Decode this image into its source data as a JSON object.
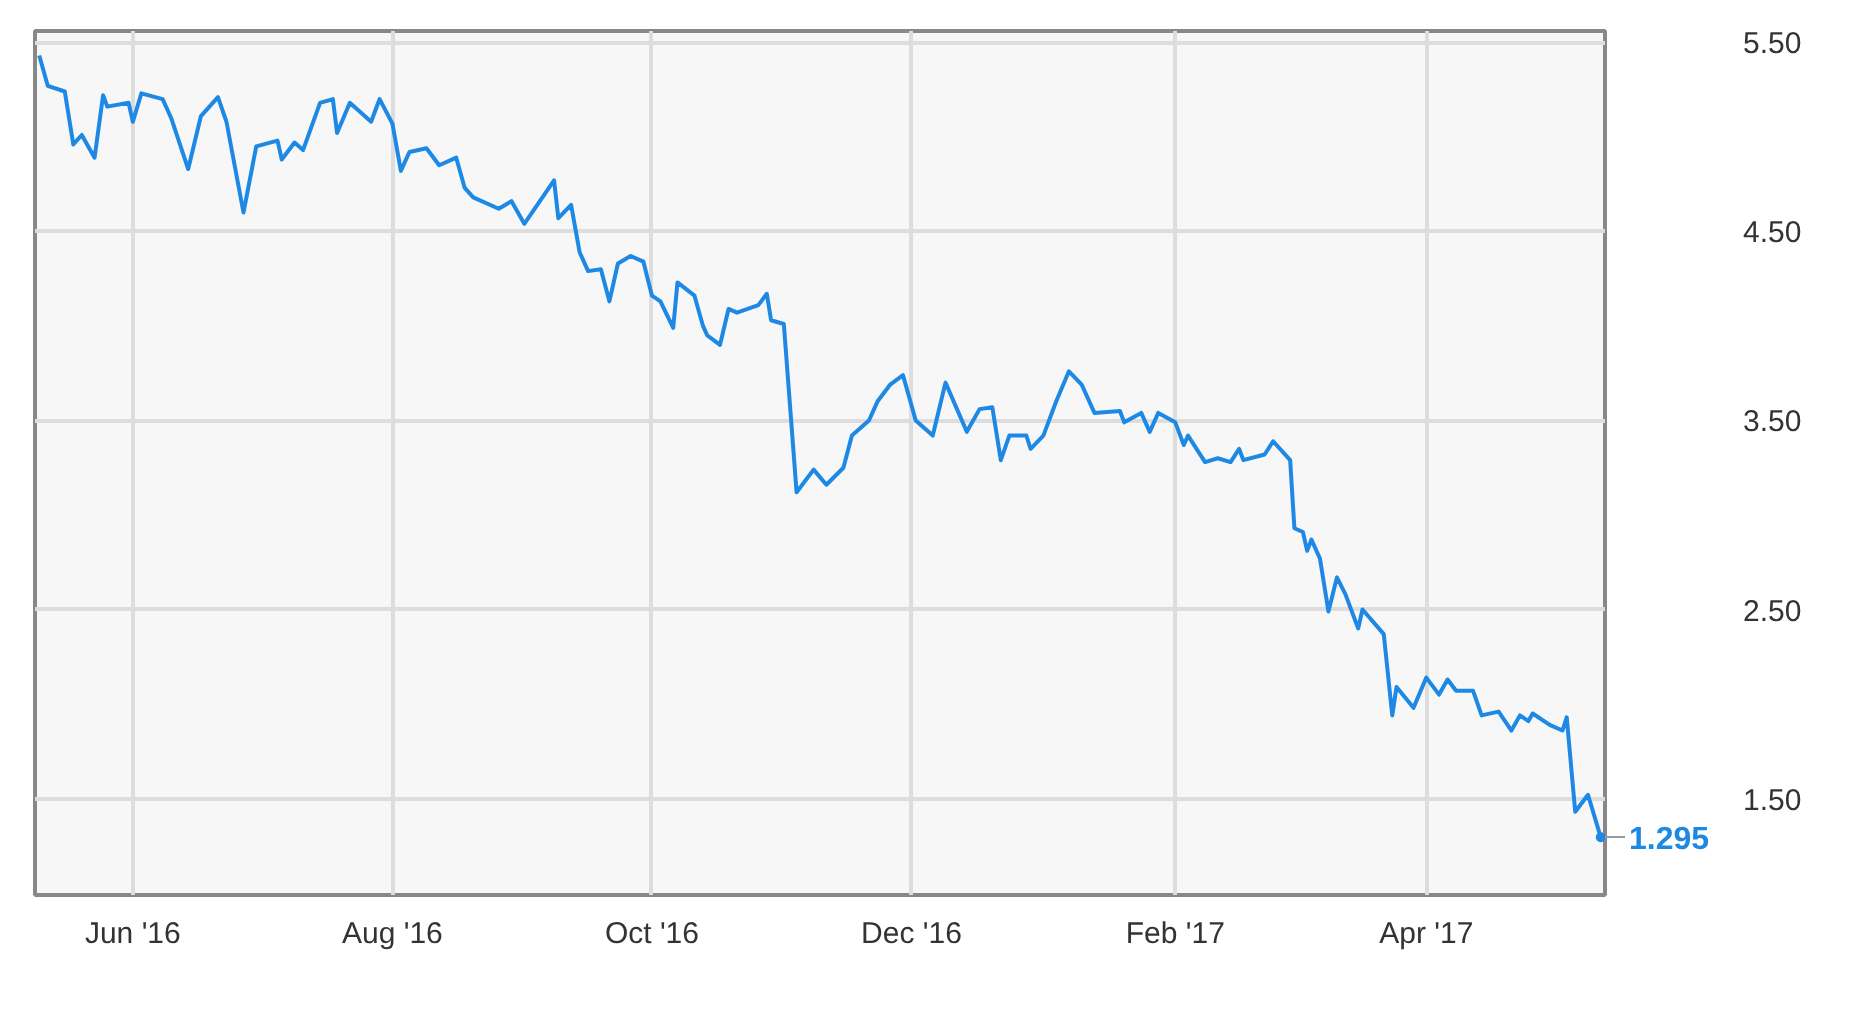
{
  "chart_data": {
    "type": "line",
    "x": [
      "2016-05-10",
      "2016-05-12",
      "2016-05-16",
      "2016-05-18",
      "2016-05-20",
      "2016-05-23",
      "2016-05-25",
      "2016-05-26",
      "2016-05-31",
      "2016-06-01",
      "2016-06-03",
      "2016-06-08",
      "2016-06-10",
      "2016-06-14",
      "2016-06-17",
      "2016-06-21",
      "2016-06-23",
      "2016-06-27",
      "2016-06-30",
      "2016-07-05",
      "2016-07-06",
      "2016-07-09",
      "2016-07-11",
      "2016-07-15",
      "2016-07-18",
      "2016-07-19",
      "2016-07-22",
      "2016-07-27",
      "2016-07-29",
      "2016-08-01",
      "2016-08-03",
      "2016-08-05",
      "2016-08-09",
      "2016-08-12",
      "2016-08-16",
      "2016-08-18",
      "2016-08-20",
      "2016-08-26",
      "2016-08-29",
      "2016-09-01",
      "2016-09-08",
      "2016-09-09",
      "2016-09-12",
      "2016-09-14",
      "2016-09-16",
      "2016-09-19",
      "2016-09-21",
      "2016-09-23",
      "2016-09-26",
      "2016-09-29",
      "2016-10-01",
      "2016-10-03",
      "2016-10-06",
      "2016-10-07",
      "2016-10-11",
      "2016-10-13",
      "2016-10-14",
      "2016-10-17",
      "2016-10-19",
      "2016-10-21",
      "2016-10-26",
      "2016-10-28",
      "2016-10-29",
      "2016-11-01",
      "2016-11-04",
      "2016-11-08",
      "2016-11-11",
      "2016-11-15",
      "2016-11-17",
      "2016-11-21",
      "2016-11-23",
      "2016-11-26",
      "2016-11-29",
      "2016-12-02",
      "2016-12-06",
      "2016-12-09",
      "2016-12-14",
      "2016-12-17",
      "2016-12-20",
      "2016-12-22",
      "2016-12-24",
      "2016-12-28",
      "2016-12-29",
      "2017-01-01",
      "2017-01-04",
      "2017-01-07",
      "2017-01-10",
      "2017-01-13",
      "2017-01-19",
      "2017-01-20",
      "2017-01-24",
      "2017-01-26",
      "2017-01-28",
      "2017-02-01",
      "2017-02-03",
      "2017-02-04",
      "2017-02-08",
      "2017-02-11",
      "2017-02-14",
      "2017-02-16",
      "2017-02-17",
      "2017-02-22",
      "2017-02-24",
      "2017-02-28",
      "2017-03-01",
      "2017-03-03",
      "2017-03-04",
      "2017-03-05",
      "2017-03-07",
      "2017-03-09",
      "2017-03-11",
      "2017-03-13",
      "2017-03-16",
      "2017-03-17",
      "2017-03-22",
      "2017-03-24",
      "2017-03-25",
      "2017-03-29",
      "2017-04-01",
      "2017-04-04",
      "2017-04-06",
      "2017-04-08",
      "2017-04-12",
      "2017-04-14",
      "2017-04-18",
      "2017-04-21",
      "2017-04-23",
      "2017-04-25",
      "2017-04-26",
      "2017-04-30",
      "2017-05-03",
      "2017-05-04",
      "2017-05-06",
      "2017-05-09",
      "2017-05-12"
    ],
    "series": [
      {
        "color": "#1e88e5",
        "values": [
          5.43,
          5.27,
          5.24,
          4.96,
          5.01,
          4.89,
          5.22,
          5.16,
          5.18,
          5.08,
          5.23,
          5.2,
          5.1,
          4.83,
          5.11,
          5.21,
          5.08,
          4.6,
          4.95,
          4.98,
          4.88,
          4.97,
          4.93,
          5.18,
          5.2,
          5.02,
          5.18,
          5.08,
          5.2,
          5.07,
          4.82,
          4.92,
          4.94,
          4.85,
          4.89,
          4.73,
          4.68,
          4.62,
          4.66,
          4.54,
          4.77,
          4.57,
          4.64,
          4.39,
          4.29,
          4.3,
          4.13,
          4.33,
          4.37,
          4.34,
          4.16,
          4.13,
          3.99,
          4.23,
          4.16,
          4.0,
          3.95,
          3.9,
          4.09,
          4.07,
          4.11,
          4.17,
          4.03,
          4.01,
          3.12,
          3.24,
          3.16,
          3.25,
          3.42,
          3.5,
          3.6,
          3.69,
          3.74,
          3.5,
          3.42,
          3.7,
          3.44,
          3.56,
          3.57,
          3.29,
          3.42,
          3.42,
          3.35,
          3.42,
          3.6,
          3.76,
          3.69,
          3.54,
          3.55,
          3.49,
          3.54,
          3.44,
          3.54,
          3.49,
          3.37,
          3.42,
          3.28,
          3.3,
          3.28,
          3.35,
          3.29,
          3.32,
          3.39,
          3.29,
          2.93,
          2.91,
          2.81,
          2.87,
          2.77,
          2.49,
          2.67,
          2.58,
          2.4,
          2.5,
          2.37,
          1.94,
          2.09,
          1.98,
          2.14,
          2.05,
          2.13,
          2.07,
          2.07,
          1.94,
          1.96,
          1.86,
          1.94,
          1.91,
          1.95,
          1.89,
          1.86,
          1.93,
          1.43,
          1.52,
          1.295
        ]
      }
    ],
    "xlim": [
      "2016-05-09",
      "2017-05-13"
    ],
    "xticks": [
      {
        "value": "2016-06-01",
        "label": "Jun '16"
      },
      {
        "value": "2016-08-01",
        "label": "Aug '16"
      },
      {
        "value": "2016-10-01",
        "label": "Oct '16"
      },
      {
        "value": "2016-12-01",
        "label": "Dec '16"
      },
      {
        "value": "2017-02-01",
        "label": "Feb '17"
      },
      {
        "value": "2017-04-01",
        "label": "Apr '17"
      }
    ],
    "ylim": [
      0.99,
      5.56
    ],
    "yticks": [
      {
        "value": 1.5,
        "label": "1.50"
      },
      {
        "value": 2.5,
        "label": "2.50"
      },
      {
        "value": 3.5,
        "label": "3.50"
      },
      {
        "value": 4.5,
        "label": "4.50"
      },
      {
        "value": 5.5,
        "label": "5.50"
      }
    ],
    "grid": true,
    "annotations": [
      {
        "text": "1.295",
        "x": "2017-05-12",
        "y": 1.295
      }
    ]
  }
}
